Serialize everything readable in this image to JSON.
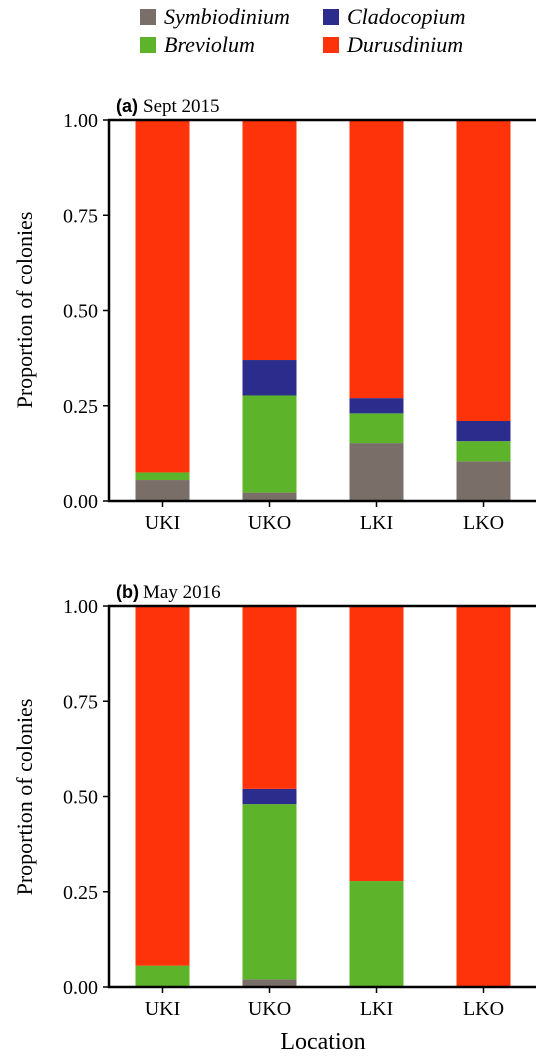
{
  "legend": {
    "items": [
      {
        "label": "Symbiodinium",
        "color": "#7a6e69"
      },
      {
        "label": "Cladocopium",
        "color": "#2b2c8c"
      },
      {
        "label": "Breviolum",
        "color": "#5db32a"
      },
      {
        "label": "Durusdinium",
        "color": "#fe330a"
      }
    ]
  },
  "chart_data": [
    {
      "type": "bar",
      "stacked": true,
      "panel_letter": "(a)",
      "title": "Sept 2015",
      "xlabel": "",
      "ylabel": "Proportion of colonies",
      "ylim": [
        0,
        1
      ],
      "yticks": [
        "0.00",
        "0.25",
        "0.50",
        "0.75",
        "1.00"
      ],
      "categories": [
        "UKI",
        "UKO",
        "LKI",
        "LKO"
      ],
      "series": [
        {
          "name": "Symbiodinium",
          "values": [
            0.055,
            0.022,
            0.152,
            0.104
          ]
        },
        {
          "name": "Breviolum",
          "values": [
            0.02,
            0.255,
            0.078,
            0.053
          ]
        },
        {
          "name": "Cladocopium",
          "values": [
            0.0,
            0.093,
            0.04,
            0.053
          ]
        },
        {
          "name": "Durusdinium",
          "values": [
            0.925,
            0.63,
            0.73,
            0.79
          ]
        }
      ]
    },
    {
      "type": "bar",
      "stacked": true,
      "panel_letter": "(b)",
      "title": "May 2016",
      "xlabel": "Location",
      "ylabel": "Proportion of colonies",
      "ylim": [
        0,
        1
      ],
      "yticks": [
        "0.00",
        "0.25",
        "0.50",
        "0.75",
        "1.00"
      ],
      "categories": [
        "UKI",
        "UKO",
        "LKI",
        "LKO"
      ],
      "series": [
        {
          "name": "Symbiodinium",
          "values": [
            0.0,
            0.02,
            0.0,
            0.0
          ]
        },
        {
          "name": "Breviolum",
          "values": [
            0.056,
            0.46,
            0.278,
            0.0
          ]
        },
        {
          "name": "Cladocopium",
          "values": [
            0.0,
            0.04,
            0.0,
            0.0
          ]
        },
        {
          "name": "Durusdinium",
          "values": [
            0.944,
            0.48,
            0.722,
            1.0
          ]
        }
      ]
    }
  ]
}
